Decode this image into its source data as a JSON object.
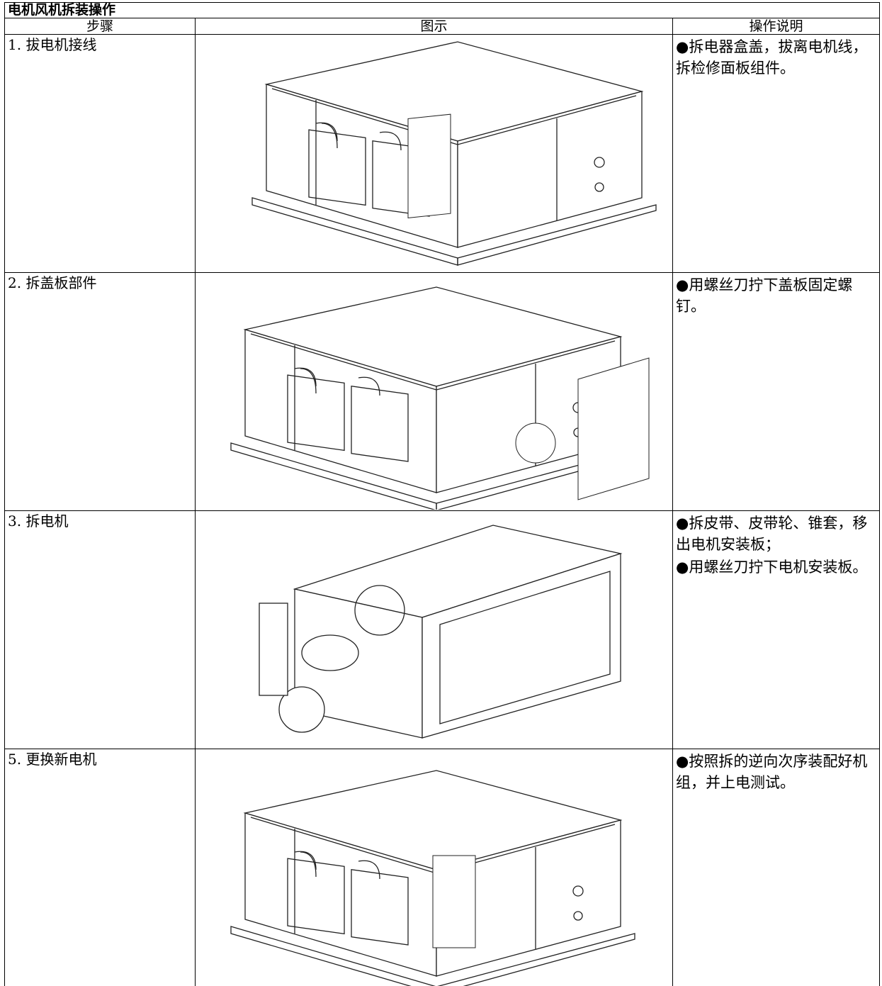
{
  "header": {
    "title": "电机风机拆装操作"
  },
  "table": {
    "columns": [
      "步骤",
      "图示",
      "操作说明"
    ],
    "rows": [
      {
        "step": "1. 拔电机接线",
        "description": [
          "●拆电器盒盖，拔离电机线，拆检修面板组件。"
        ]
      },
      {
        "step": "2. 拆盖板部件",
        "description": [
          "●用螺丝刀拧下盖板固定螺钉。"
        ]
      },
      {
        "step": "3. 拆电机",
        "description": [
          "●拆皮带、皮带轮、锥套，移出电机安装板；",
          "●用螺丝刀拧下电机安装板。"
        ]
      },
      {
        "step": "5. 更换新电机",
        "description": [
          "●按照拆的逆向次序装配好机组，并上电测试。"
        ]
      }
    ]
  }
}
